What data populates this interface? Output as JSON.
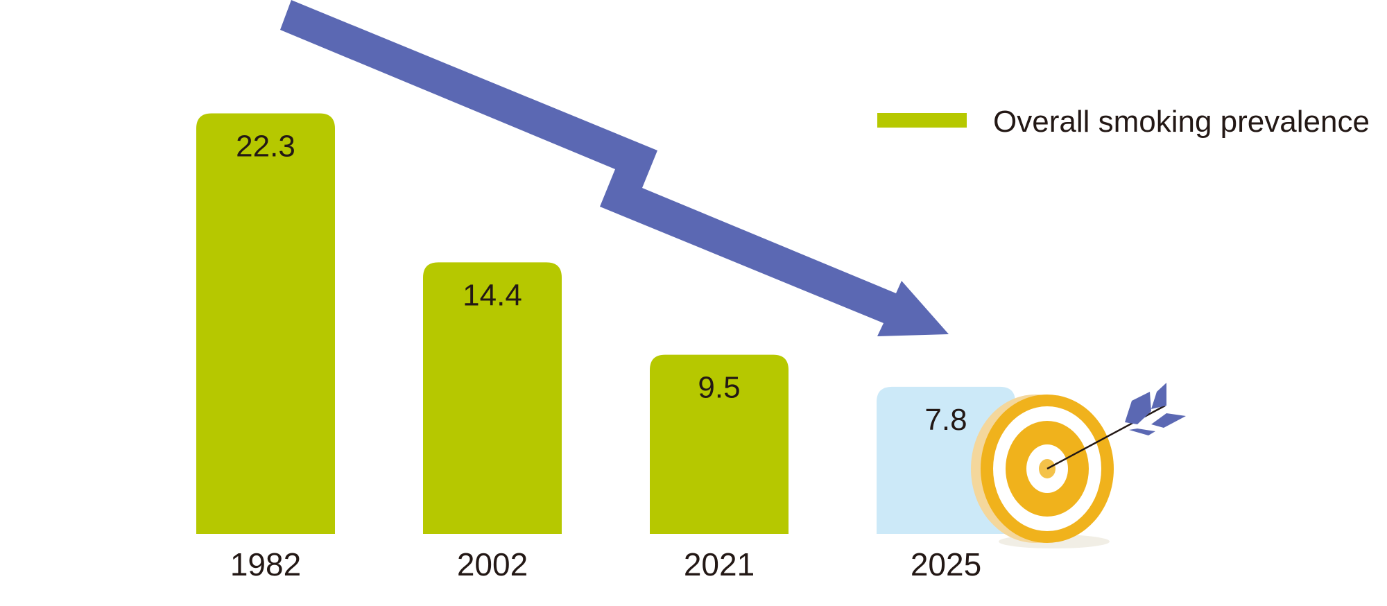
{
  "chart_data": {
    "type": "bar",
    "categories": [
      "1982",
      "2002",
      "2021",
      "2025"
    ],
    "values": [
      22.3,
      14.4,
      9.5,
      7.8
    ],
    "series": [
      {
        "name": "Overall smoking prevalence",
        "values": [
          22.3,
          14.4,
          9.5,
          7.8
        ]
      }
    ],
    "target_category": "2025",
    "ylim": [
      0,
      25
    ],
    "grid": false,
    "legend_position": "top-right",
    "colors": {
      "bar": "#b6c800",
      "target_bar": "#cce9f8",
      "arrow": "#5b68b3",
      "target_ring": "#f0b21c",
      "text": "#231815"
    },
    "annotations": {
      "trend_arrow": "decreasing trend arrow",
      "target_icon": "dartboard-target-icon"
    }
  }
}
